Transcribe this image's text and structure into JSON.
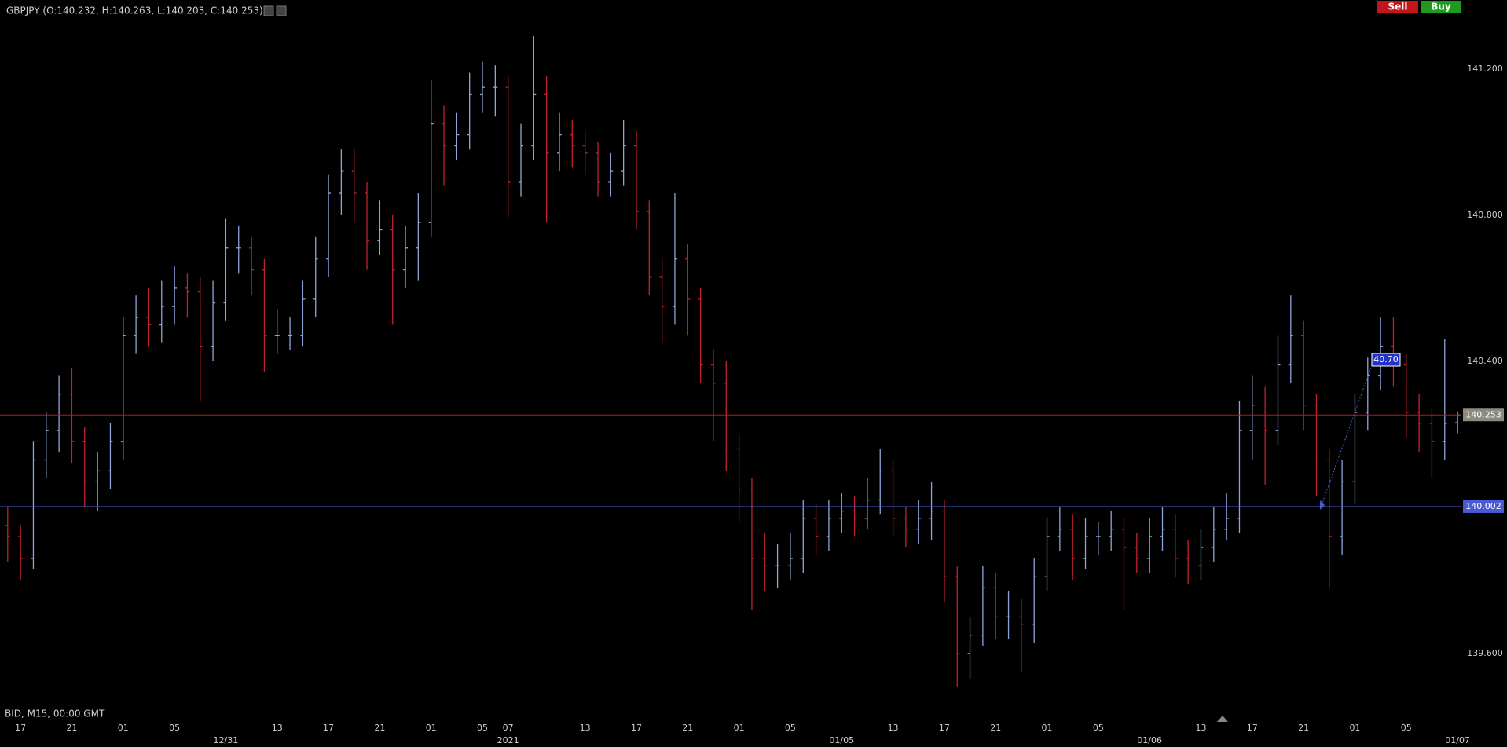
{
  "header": {
    "symbol_ohlc": "GBPJPY (O:140.232, H:140.263, L:140.203, C:140.253)",
    "buttons": [
      "Sell",
      "Buy"
    ],
    "footer": "BID, M15, 00:00 GMT"
  },
  "chart_data": {
    "type": "ohlc",
    "categories": [
      null,
      "17",
      null,
      null,
      null,
      "21",
      null,
      null,
      null,
      "01",
      null,
      null,
      null,
      "05",
      null,
      null,
      null,
      null,
      null,
      null,
      null,
      "13",
      null,
      null,
      null,
      "17",
      null,
      null,
      null,
      "21",
      null,
      null,
      null,
      "01",
      null,
      null,
      null,
      "05",
      null,
      "07",
      null,
      null,
      null,
      null,
      null,
      "13",
      null,
      null,
      null,
      "17",
      null,
      null,
      null,
      "21",
      null,
      null,
      null,
      "01",
      null,
      null,
      null,
      "05",
      null,
      null,
      null,
      null,
      null,
      null,
      null,
      "13",
      null,
      null,
      null,
      "17",
      null,
      null,
      null,
      "21",
      null,
      null,
      null,
      "01",
      null,
      null,
      null,
      "05",
      null,
      null,
      null,
      null,
      null,
      null,
      null,
      "13",
      null,
      null,
      null,
      "17",
      null,
      null,
      null,
      "21",
      null,
      null,
      null,
      "01",
      null,
      null,
      null,
      "05",
      null,
      null,
      null,
      null
    ],
    "date_labels": [
      null,
      null,
      null,
      null,
      null,
      null,
      null,
      null,
      null,
      null,
      null,
      null,
      null,
      null,
      null,
      null,
      null,
      "12/31",
      null,
      null,
      null,
      null,
      null,
      null,
      null,
      null,
      null,
      null,
      null,
      null,
      null,
      null,
      null,
      null,
      null,
      null,
      null,
      null,
      null,
      "2021",
      null,
      null,
      null,
      null,
      null,
      null,
      null,
      null,
      null,
      null,
      null,
      null,
      null,
      null,
      null,
      null,
      null,
      null,
      null,
      null,
      null,
      null,
      null,
      null,
      null,
      "01/05",
      null,
      null,
      null,
      null,
      null,
      null,
      null,
      null,
      null,
      null,
      null,
      null,
      null,
      null,
      null,
      null,
      null,
      null,
      null,
      null,
      null,
      null,
      null,
      "01/06",
      null,
      null,
      null,
      null,
      null,
      null,
      null,
      null,
      null,
      null,
      null,
      null,
      null,
      null,
      null,
      null,
      null,
      null,
      null,
      null,
      null,
      null,
      null,
      "01/07"
    ],
    "open": [
      139.95,
      139.92,
      139.86,
      140.13,
      140.21,
      140.31,
      140.18,
      140.07,
      140.1,
      140.18,
      140.47,
      140.52,
      140.5,
      140.55,
      140.6,
      140.59,
      140.44,
      140.56,
      140.71,
      140.71,
      140.65,
      140.47,
      140.47,
      140.47,
      140.57,
      140.68,
      140.86,
      140.92,
      140.86,
      140.73,
      140.76,
      140.65,
      140.71,
      140.78,
      141.05,
      140.99,
      141.02,
      141.13,
      141.15,
      141.15,
      140.89,
      140.99,
      141.13,
      140.97,
      141.02,
      140.99,
      140.97,
      140.89,
      140.92,
      140.99,
      140.81,
      140.63,
      140.55,
      140.68,
      140.57,
      140.39,
      140.34,
      140.16,
      140.05,
      139.86,
      139.84,
      139.84,
      139.86,
      139.97,
      139.92,
      139.97,
      139.99,
      139.97,
      140.02,
      140.1,
      139.97,
      139.94,
      139.97,
      139.99,
      139.81,
      139.6,
      139.65,
      139.78,
      139.7,
      139.7,
      139.68,
      139.81,
      139.92,
      139.94,
      139.86,
      139.92,
      139.92,
      139.94,
      139.89,
      139.86,
      139.92,
      139.94,
      139.86,
      139.84,
      139.89,
      139.94,
      139.97,
      140.21,
      140.28,
      140.21,
      140.39,
      140.47,
      140.28,
      140.13,
      139.92,
      140.07,
      140.26,
      140.36,
      140.44,
      140.39,
      140.26,
      140.23,
      140.18,
      140.232
    ],
    "high": [
      140.0,
      139.95,
      140.18,
      140.26,
      140.36,
      140.38,
      140.22,
      140.15,
      140.23,
      140.52,
      140.58,
      140.6,
      140.62,
      140.66,
      140.64,
      140.63,
      140.62,
      140.79,
      140.77,
      140.74,
      140.68,
      140.54,
      140.52,
      140.62,
      140.74,
      140.91,
      140.98,
      140.98,
      140.89,
      140.84,
      140.8,
      140.77,
      140.86,
      141.17,
      141.1,
      141.08,
      141.19,
      141.22,
      141.21,
      141.18,
      141.05,
      141.29,
      141.18,
      141.08,
      141.06,
      141.03,
      141.0,
      140.97,
      141.06,
      141.03,
      140.84,
      140.68,
      140.86,
      140.72,
      140.6,
      140.43,
      140.4,
      140.2,
      140.08,
      139.93,
      139.9,
      139.93,
      140.02,
      140.01,
      140.02,
      140.04,
      140.03,
      140.08,
      140.16,
      140.13,
      140.0,
      140.02,
      140.07,
      140.02,
      139.84,
      139.7,
      139.84,
      139.82,
      139.77,
      139.75,
      139.86,
      139.97,
      140.0,
      139.98,
      139.97,
      139.96,
      139.99,
      139.97,
      139.93,
      139.97,
      140.0,
      139.98,
      139.91,
      139.94,
      140.0,
      140.04,
      140.29,
      140.36,
      140.33,
      140.47,
      140.58,
      140.51,
      140.31,
      140.16,
      140.13,
      140.31,
      140.41,
      140.52,
      140.52,
      140.42,
      140.31,
      140.27,
      140.46,
      140.263
    ],
    "low": [
      139.85,
      139.8,
      139.83,
      140.08,
      140.15,
      140.12,
      140.0,
      139.99,
      140.05,
      140.13,
      140.42,
      140.44,
      140.45,
      140.5,
      140.52,
      140.29,
      140.4,
      140.51,
      140.64,
      140.58,
      140.37,
      140.42,
      140.43,
      140.44,
      140.52,
      140.63,
      140.8,
      140.78,
      140.65,
      140.69,
      140.5,
      140.6,
      140.62,
      140.74,
      140.88,
      140.95,
      140.98,
      141.08,
      141.07,
      140.79,
      140.85,
      140.95,
      140.78,
      140.92,
      140.93,
      140.91,
      140.85,
      140.85,
      140.88,
      140.76,
      140.58,
      140.45,
      140.5,
      140.47,
      140.34,
      140.18,
      140.1,
      139.96,
      139.72,
      139.77,
      139.78,
      139.8,
      139.82,
      139.87,
      139.88,
      139.93,
      139.92,
      139.94,
      139.98,
      139.92,
      139.89,
      139.9,
      139.91,
      139.74,
      139.51,
      139.53,
      139.62,
      139.64,
      139.64,
      139.55,
      139.63,
      139.77,
      139.88,
      139.8,
      139.83,
      139.87,
      139.88,
      139.72,
      139.82,
      139.82,
      139.88,
      139.81,
      139.79,
      139.8,
      139.85,
      139.91,
      139.93,
      140.13,
      140.06,
      140.17,
      140.34,
      140.21,
      140.03,
      139.78,
      139.87,
      140.01,
      140.21,
      140.32,
      140.33,
      140.19,
      140.15,
      140.08,
      140.13,
      140.203
    ],
    "close": [
      139.92,
      139.86,
      140.13,
      140.21,
      140.31,
      140.18,
      140.07,
      140.1,
      140.18,
      140.47,
      140.52,
      140.5,
      140.55,
      140.6,
      140.59,
      140.44,
      140.56,
      140.71,
      140.71,
      140.65,
      140.47,
      140.47,
      140.47,
      140.57,
      140.68,
      140.86,
      140.92,
      140.86,
      140.73,
      140.76,
      140.65,
      140.71,
      140.78,
      141.05,
      140.99,
      141.02,
      141.13,
      141.15,
      141.15,
      140.89,
      140.99,
      141.13,
      140.97,
      141.02,
      140.99,
      140.97,
      140.89,
      140.92,
      140.99,
      140.81,
      140.63,
      140.55,
      140.68,
      140.57,
      140.39,
      140.34,
      140.16,
      140.05,
      139.86,
      139.84,
      139.84,
      139.86,
      139.97,
      139.92,
      139.97,
      139.99,
      139.97,
      140.02,
      140.1,
      139.97,
      139.94,
      139.97,
      139.99,
      139.81,
      139.6,
      139.65,
      139.78,
      139.7,
      139.7,
      139.68,
      139.81,
      139.92,
      139.94,
      139.86,
      139.92,
      139.92,
      139.94,
      139.89,
      139.86,
      139.92,
      139.94,
      139.86,
      139.84,
      139.89,
      139.94,
      139.97,
      140.21,
      140.28,
      140.21,
      140.39,
      140.47,
      140.28,
      140.13,
      139.92,
      140.07,
      140.26,
      140.36,
      140.44,
      140.39,
      140.26,
      140.23,
      140.18,
      140.23,
      140.253
    ],
    "up_color": "#8ea4d8",
    "down_color": "#c4222b",
    "ylim": [
      139.417,
      141.389
    ],
    "yticks": [
      {
        "value": 141.2,
        "label": "141.200"
      },
      {
        "value": 140.8,
        "label": "140.800"
      },
      {
        "value": 140.4,
        "label": "140.400"
      },
      {
        "value": 139.6,
        "label": "139.600"
      }
    ],
    "price_lines": [
      {
        "value": 140.253,
        "color": "#b31b1b",
        "label_color": "#8c8a7e"
      },
      {
        "value": 140.002,
        "color": "#4a5ccf",
        "label_color": "#4a5ad0"
      }
    ],
    "annotations": [
      {
        "text": "40.70"
      }
    ]
  }
}
